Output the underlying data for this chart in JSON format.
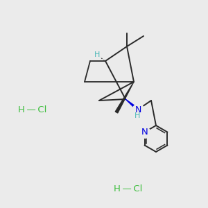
{
  "background_color": "#ebebeb",
  "bond_color": "#2a2a2a",
  "N_color": "#0000e0",
  "H_color": "#4db8b8",
  "HCl_color": "#3dbe3d",
  "figsize": [
    3.0,
    3.0
  ],
  "dpi": 100,
  "hcl1": [
    47,
    158
  ],
  "hcl2": [
    185,
    272
  ],
  "hcl_fontsize": 9.5
}
